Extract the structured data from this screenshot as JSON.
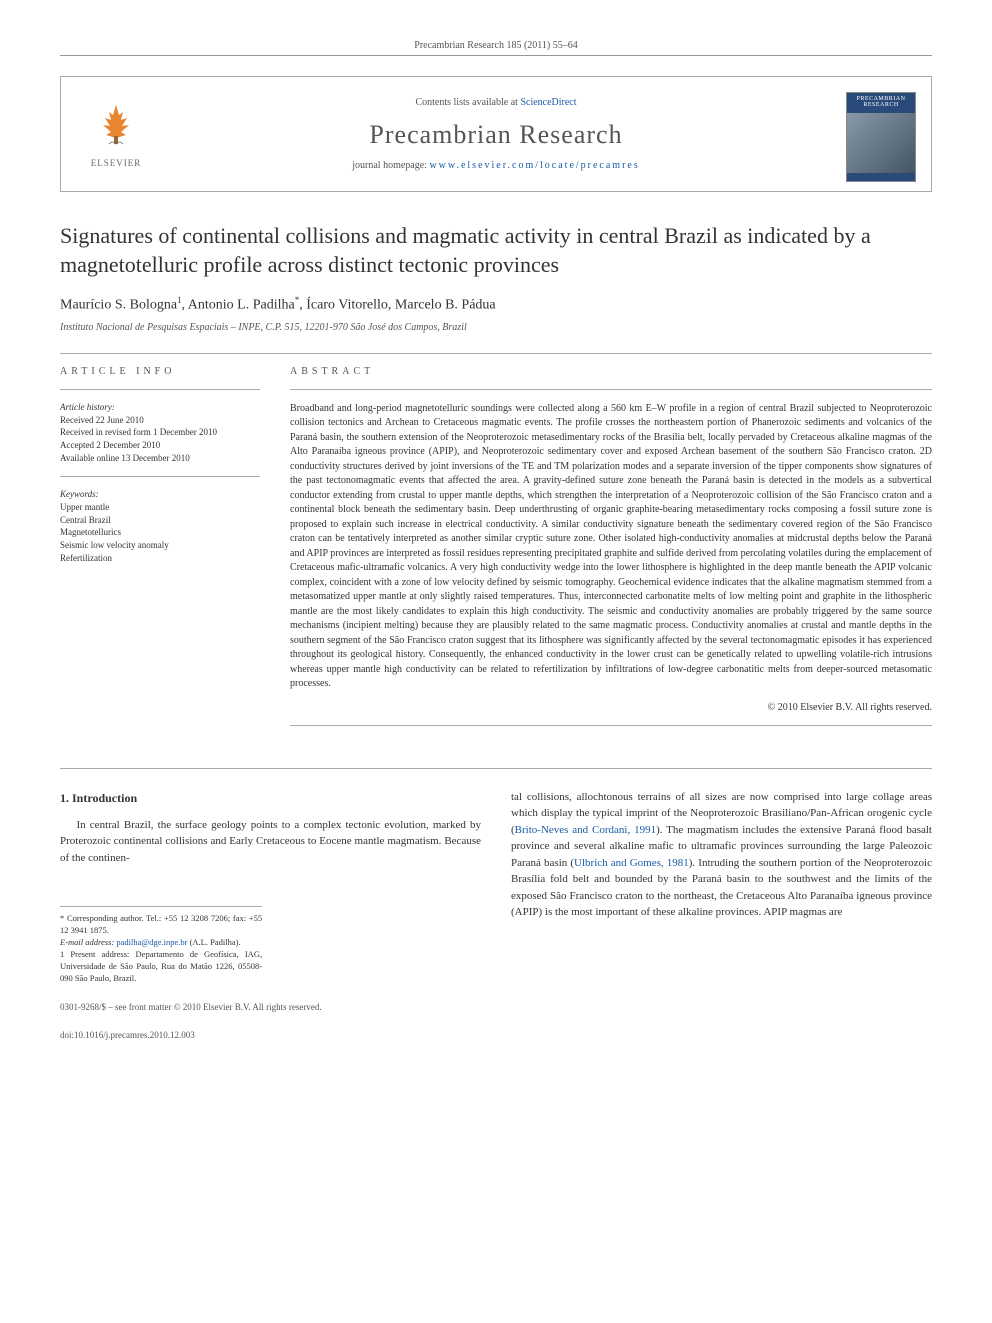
{
  "header": {
    "running": "Precambrian Research 185 (2011) 55–64"
  },
  "journal_box": {
    "contents_prefix": "Contents lists available at ",
    "contents_link": "ScienceDirect",
    "title": "Precambrian Research",
    "homepage_prefix": "journal homepage: ",
    "homepage_link": "www.elsevier.com/locate/precamres",
    "elsevier_label": "ELSEVIER",
    "cover_label": "PRECAMBRIAN RESEARCH"
  },
  "article": {
    "title": "Signatures of continental collisions and magmatic activity in central Brazil as indicated by a magnetotelluric profile across distinct tectonic provinces",
    "authors_html": "Maurício S. Bologna<sup>1</sup>, Antonio L. Padilha<sup>*</sup>, Ícaro Vitorello, Marcelo B. Pádua",
    "affiliation": "Instituto Nacional de Pesquisas Espaciais – INPE, C.P. 515, 12201-970 São José dos Campos, Brazil"
  },
  "info": {
    "heading": "ARTICLE INFO",
    "history_label": "Article history:",
    "history": "Received 22 June 2010\nReceived in revised form 1 December 2010\nAccepted 2 December 2010\nAvailable online 13 December 2010",
    "keywords_label": "Keywords:",
    "keywords": "Upper mantle\nCentral Brazil\nMagnetotellurics\nSeismic low velocity anomaly\nRefertilization"
  },
  "abstract": {
    "heading": "ABSTRACT",
    "text": "Broadband and long-period magnetotelluric soundings were collected along a 560 km E–W profile in a region of central Brazil subjected to Neoproterozoic collision tectonics and Archean to Cretaceous magmatic events. The profile crosses the northeastern portion of Phanerozoic sediments and volcanics of the Paraná basin, the southern extension of the Neoproterozoic metasedimentary rocks of the Brasília belt, locally pervaded by Cretaceous alkaline magmas of the Alto Paranaíba igneous province (APIP), and Neoproterozoic sedimentary cover and exposed Archean basement of the southern São Francisco craton. 2D conductivity structures derived by joint inversions of the TE and TM polarization modes and a separate inversion of the tipper components show signatures of the past tectonomagmatic events that affected the area. A gravity-defined suture zone beneath the Paraná basin is detected in the models as a subvertical conductor extending from crustal to upper mantle depths, which strengthen the interpretation of a Neoproterozoic collision of the São Francisco craton and a continental block beneath the sedimentary basin. Deep underthrusting of organic graphite-bearing metasedimentary rocks composing a fossil suture zone is proposed to explain such increase in electrical conductivity. A similar conductivity signature beneath the sedimentary covered region of the São Francisco craton can be tentatively interpreted as another similar cryptic suture zone. Other isolated high-conductivity anomalies at midcrustal depths below the Paraná and APIP provinces are interpreted as fossil residues representing precipitated graphite and sulfide derived from percolating volatiles during the emplacement of Cretaceous mafic-ultramafic volcanics. A very high conductivity wedge into the lower lithosphere is highlighted in the deep mantle beneath the APIP volcanic complex, coincident with a zone of low velocity defined by seismic tomography. Geochemical evidence indicates that the alkaline magmatism stemmed from a metasomatized upper mantle at only slightly raised temperatures. Thus, interconnected carbonatite melts of low melting point and graphite in the lithospheric mantle are the most likely candidates to explain this high conductivity. The seismic and conductivity anomalies are probably triggered by the same source mechanisms (incipient melting) because they are plausibly related to the same magmatic process. Conductivity anomalies at crustal and mantle depths in the southern segment of the São Francisco craton suggest that its lithosphere was significantly affected by the several tectonomagmatic episodes it has experienced throughout its geological history. Consequently, the enhanced conductivity in the lower crust can be genetically related to upwelling volatile-rich intrusions whereas upper mantle high conductivity can be related to refertilization by infiltrations of low-degree carbonatitic melts from deeper-sourced metasomatic processes.",
    "copyright": "© 2010 Elsevier B.V. All rights reserved."
  },
  "body": {
    "section_number": "1.",
    "section_title": "Introduction",
    "left_para": "In central Brazil, the surface geology points to a complex tectonic evolution, marked by Proterozoic continental collisions and Early Cretaceous to Eocene mantle magmatism. Because of the continen-",
    "right_para_1": "tal collisions, allochtonous terrains of all sizes are now comprised into large collage areas which display the typical imprint of the Neoproterozoic Brasiliano/Pan-African orogenic cycle (",
    "right_cite_1": "Brito-Neves and Cordani, 1991",
    "right_para_2": "). The magmatism includes the extensive Paraná flood basalt province and several alkaline mafic to ultramafic provinces surrounding the large Paleozoic Paraná basin (",
    "right_cite_2": "Ulbrich and Gomes, 1981",
    "right_para_3": "). Intruding the southern portion of the Neoproterozoic Brasília fold belt and bounded by the Paraná basin to the southwest and the limits of the exposed São Francisco craton to the northeast, the Cretaceous Alto Paranaíba igneous province (APIP) is the most important of these alkaline provinces. APIP magmas are"
  },
  "footnotes": {
    "corresponding": "* Corresponding author. Tel.: +55 12 3208 7206; fax: +55 12 3941 1875.",
    "email_label": "E-mail address: ",
    "email": "padilha@dge.inpe.br",
    "email_suffix": " (A.L. Padilha).",
    "present": "1 Present address: Departamento de Geofísica, IAG, Universidade de São Paulo, Rua do Matão 1226, 05508-090 São Paulo, Brazil."
  },
  "footer": {
    "line1": "0301-9268/$ – see front matter © 2010 Elsevier B.V. All rights reserved.",
    "line2": "doi:10.1016/j.precamres.2010.12.003"
  },
  "colors": {
    "link": "#1a5ba8",
    "text": "#333333",
    "muted": "#555555",
    "rule": "#aaaaaa",
    "cover_bg": "#2a4a7a"
  }
}
